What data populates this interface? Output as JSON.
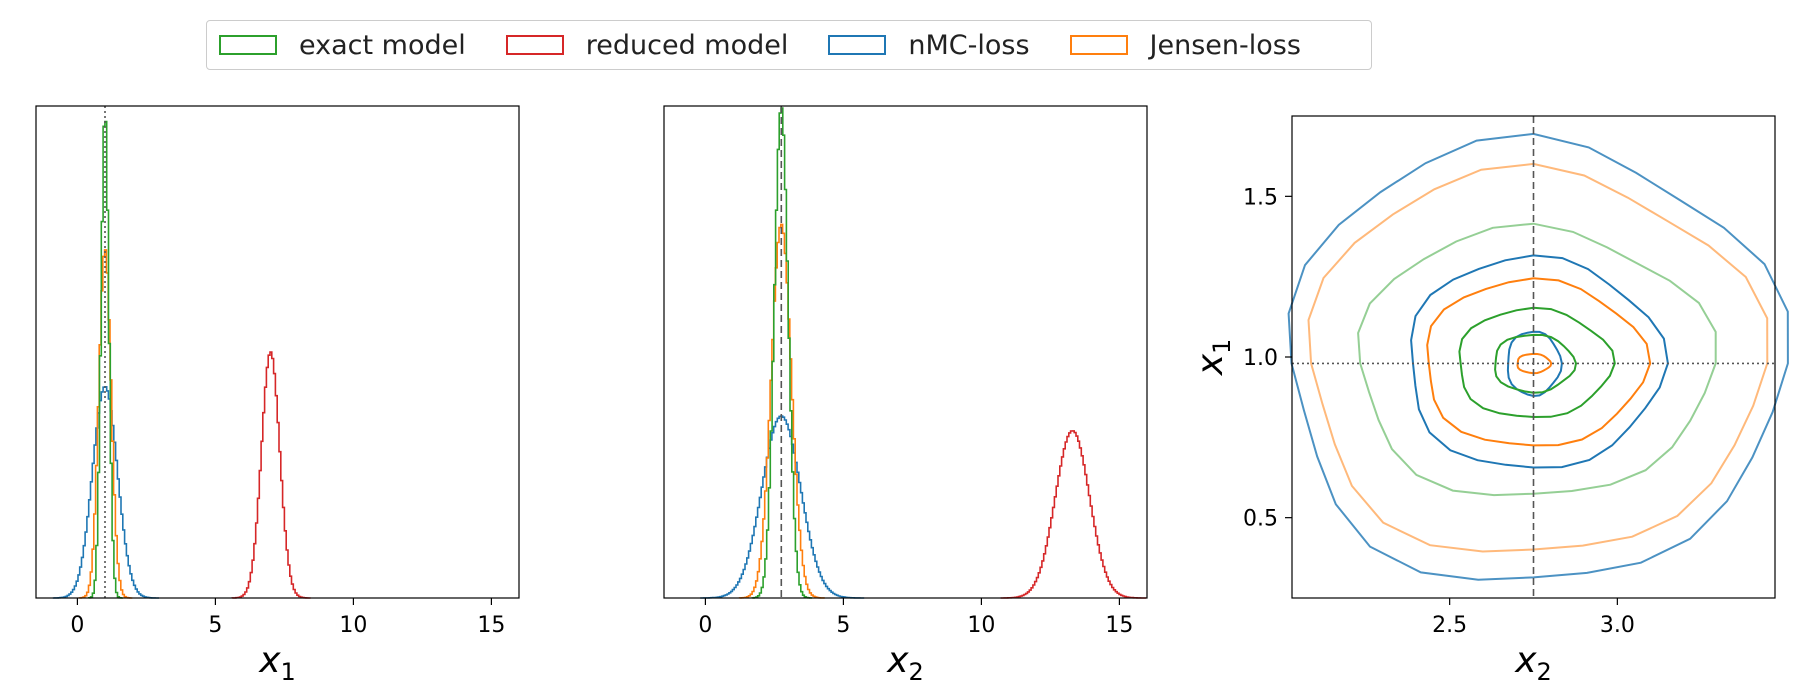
{
  "legend": [
    {
      "label": "exact model",
      "color": "#2ca02c"
    },
    {
      "label": "reduced model",
      "color": "#d62728"
    },
    {
      "label": "nMC-loss",
      "color": "#1f77b4"
    },
    {
      "label": "Jensen-loss",
      "color": "#ff7f0e"
    }
  ],
  "chart_data": [
    {
      "type": "histogram",
      "xlabel_main": "x",
      "xlabel_sub": "1",
      "xlim": [
        -1.5,
        16
      ],
      "ylim": [
        0,
        1.0
      ],
      "xticks": [
        0,
        5,
        10,
        15
      ],
      "refline": {
        "x": 1.0,
        "style": "dotted"
      },
      "series": [
        {
          "name": "exact model",
          "color": "#2ca02c",
          "mu": 1.0,
          "sigma": 0.14,
          "peak": 0.99
        },
        {
          "name": "reduced model",
          "color": "#d62728",
          "mu": 7.0,
          "sigma": 0.33,
          "peak": 0.5
        },
        {
          "name": "nMC-loss",
          "color": "#1f77b4",
          "mu": 1.0,
          "sigma": 0.45,
          "peak": 0.43
        },
        {
          "name": "Jensen-loss",
          "color": "#ff7f0e",
          "mu": 1.0,
          "sigma": 0.22,
          "peak": 0.71
        }
      ]
    },
    {
      "type": "histogram",
      "xlabel_main": "x",
      "xlabel_sub": "2",
      "xlim": [
        -1.5,
        16
      ],
      "ylim": [
        0,
        1.0
      ],
      "xticks": [
        0,
        5,
        10,
        15
      ],
      "refline": {
        "x": 2.75,
        "style": "dashed"
      },
      "series": [
        {
          "name": "exact model",
          "color": "#2ca02c",
          "mu": 2.75,
          "sigma": 0.25,
          "peak": 1.0
        },
        {
          "name": "reduced model",
          "color": "#d62728",
          "mu": 13.3,
          "sigma": 0.62,
          "peak": 0.34
        },
        {
          "name": "nMC-loss",
          "color": "#1f77b4",
          "mu": 2.75,
          "sigma": 0.7,
          "peak": 0.37
        },
        {
          "name": "Jensen-loss",
          "color": "#ff7f0e",
          "mu": 2.75,
          "sigma": 0.36,
          "peak": 0.76
        }
      ]
    },
    {
      "type": "contour",
      "xlabel_main": "x",
      "xlabel_sub": "2",
      "ylabel_main": "x",
      "ylabel_sub": "1",
      "xlim": [
        2.03,
        3.47
      ],
      "ylim": [
        0.25,
        1.75
      ],
      "xticks": [
        "2.5",
        "3.0"
      ],
      "yticks": [
        "0.5",
        "1.0",
        "1.5"
      ],
      "vline": 2.75,
      "hline": 0.98,
      "series": [
        {
          "name": "nMC-loss",
          "color": "#1f77b4",
          "rings": [
            [
              0.74,
              0.69,
              0.8
            ],
            [
              0.38,
              0.33,
              1.0
            ],
            [
              0.08,
              0.1,
              1.0
            ]
          ]
        },
        {
          "name": "Jensen-loss",
          "color": "#ff7f0e",
          "rings": [
            [
              0.68,
              0.6,
              0.55
            ],
            [
              0.33,
              0.26,
              1.0
            ],
            [
              0.05,
              0.03,
              1.0
            ]
          ]
        },
        {
          "name": "exact model",
          "color": "#2ca02c",
          "rings": [
            [
              0.53,
              0.42,
              0.5
            ],
            [
              0.23,
              0.17,
              1.0
            ],
            [
              0.12,
              0.09,
              1.0
            ]
          ]
        }
      ]
    }
  ]
}
